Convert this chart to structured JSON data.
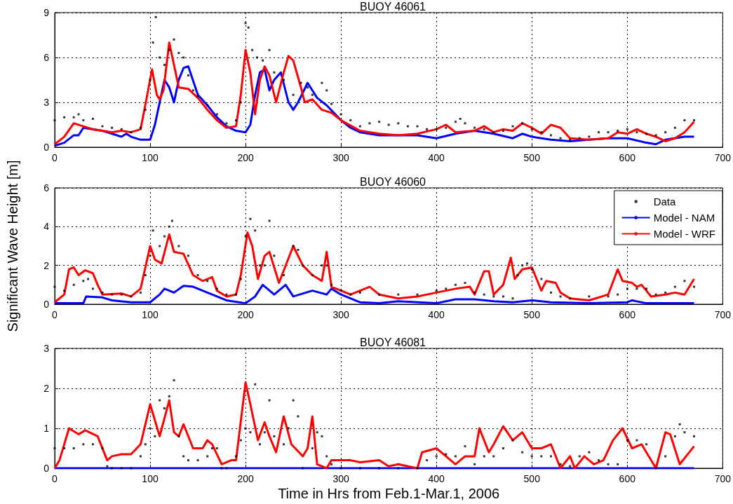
{
  "chart_data": [
    {
      "type": "line",
      "title": "BUOY 46061",
      "xlim": [
        0,
        700
      ],
      "xticks": [
        0,
        100,
        200,
        300,
        400,
        500,
        600,
        700
      ],
      "ylim": [
        0,
        9
      ],
      "yticks": [
        0,
        3,
        6,
        9
      ],
      "grid": true,
      "legend": false,
      "series": [
        {
          "type": "scatter",
          "color": "#000000",
          "x": [
            0,
            10,
            20,
            25,
            30,
            40,
            50,
            60,
            70,
            80,
            90,
            95,
            100,
            103,
            106,
            110,
            115,
            120,
            125,
            130,
            135,
            140,
            145,
            150,
            160,
            170,
            180,
            190,
            195,
            200,
            203,
            207,
            212,
            218,
            225,
            230,
            240,
            250,
            258,
            265,
            270,
            280,
            285,
            290,
            300,
            310,
            320,
            330,
            340,
            350,
            360,
            370,
            380,
            390,
            400,
            410,
            420,
            425,
            430,
            440,
            450,
            460,
            470,
            480,
            490,
            500,
            510,
            520,
            530,
            540,
            550,
            560,
            570,
            580,
            590,
            600,
            610,
            620,
            630,
            640,
            650,
            660,
            670
          ],
          "values": [
            1.8,
            2.0,
            2.0,
            2.2,
            1.8,
            1.9,
            1.4,
            1.3,
            1.2,
            1.0,
            1.3,
            2.5,
            4.5,
            7.0,
            8.7,
            6.0,
            5.5,
            6.5,
            7.2,
            6.3,
            6.0,
            4.8,
            3.8,
            3.4,
            2.8,
            2.2,
            1.6,
            1.8,
            3.0,
            8.3,
            8.0,
            6.5,
            6.0,
            5.8,
            6.5,
            5.0,
            4.5,
            3.5,
            4.3,
            4.0,
            3.5,
            4.3,
            3.8,
            2.9,
            2.2,
            1.8,
            1.4,
            1.6,
            1.7,
            1.5,
            1.6,
            1.4,
            1.4,
            1.2,
            1.2,
            1.3,
            1.7,
            1.9,
            1.6,
            1.3,
            1.2,
            1.0,
            1.1,
            1.4,
            1.6,
            1.2,
            1.0,
            0.8,
            0.6,
            0.5,
            0.6,
            0.7,
            1.0,
            1.0,
            1.1,
            1.2,
            1.0,
            0.9,
            0.8,
            1.0,
            1.3,
            1.8,
            1.8
          ]
        },
        {
          "color": "#0000ff",
          "x": [
            0,
            10,
            20,
            25,
            30,
            40,
            50,
            60,
            70,
            75,
            80,
            90,
            100,
            105,
            110,
            115,
            120,
            125,
            130,
            135,
            140,
            150,
            160,
            170,
            180,
            190,
            200,
            205,
            210,
            215,
            220,
            225,
            230,
            237,
            245,
            250,
            255,
            265,
            275,
            285,
            300,
            310,
            320,
            340,
            360,
            380,
            400,
            420,
            440,
            460,
            480,
            490,
            500,
            520,
            540,
            560,
            580,
            600,
            620,
            630,
            640,
            660,
            670
          ],
          "values": [
            0.1,
            0.3,
            0.8,
            0.8,
            1.3,
            1.2,
            1.1,
            0.9,
            0.7,
            0.9,
            0.7,
            0.5,
            0.5,
            1.5,
            3.0,
            4.5,
            4.0,
            3.0,
            4.5,
            5.3,
            5.4,
            3.5,
            2.8,
            2.0,
            1.4,
            1.1,
            1.0,
            1.5,
            3.5,
            5.0,
            5.2,
            3.8,
            4.5,
            5.0,
            3.0,
            2.5,
            3.0,
            4.3,
            3.3,
            2.8,
            1.8,
            1.3,
            1.0,
            0.8,
            0.8,
            0.8,
            0.6,
            0.9,
            1.1,
            0.9,
            0.6,
            0.9,
            0.7,
            0.5,
            0.4,
            0.5,
            0.6,
            0.6,
            0.3,
            0.2,
            0.5,
            0.7,
            0.7
          ]
        },
        {
          "color": "#ff0000",
          "x": [
            0,
            10,
            20,
            30,
            40,
            50,
            60,
            70,
            80,
            90,
            97,
            102,
            107,
            110,
            114,
            120,
            125,
            130,
            140,
            150,
            160,
            170,
            180,
            190,
            195,
            200,
            205,
            210,
            215,
            220,
            225,
            232,
            240,
            245,
            250,
            258,
            262,
            270,
            280,
            290,
            300,
            320,
            340,
            360,
            380,
            400,
            410,
            420,
            440,
            450,
            460,
            470,
            480,
            490,
            500,
            510,
            520,
            530,
            540,
            560,
            580,
            590,
            600,
            610,
            620,
            630,
            640,
            650,
            660,
            670
          ],
          "values": [
            0.2,
            0.7,
            1.6,
            1.4,
            1.2,
            1.1,
            1.0,
            1.1,
            1.0,
            1.2,
            3.5,
            5.2,
            3.5,
            3.2,
            3.8,
            7.0,
            5.5,
            4.0,
            3.9,
            3.3,
            2.5,
            1.8,
            1.3,
            1.4,
            3.5,
            6.5,
            5.0,
            2.2,
            4.5,
            5.4,
            4.8,
            3.0,
            5.0,
            6.1,
            5.8,
            4.0,
            3.0,
            3.2,
            2.5,
            2.3,
            1.8,
            1.1,
            0.9,
            0.8,
            0.9,
            1.2,
            1.5,
            1.0,
            1.1,
            1.4,
            1.0,
            1.2,
            1.1,
            1.6,
            1.3,
            0.9,
            1.5,
            1.3,
            0.6,
            0.5,
            0.6,
            1.0,
            0.9,
            1.2,
            0.9,
            0.7,
            0.4,
            0.6,
            1.0,
            1.7
          ]
        }
      ]
    },
    {
      "type": "line",
      "title": "BUOY 46060",
      "ylabel": "Significant Wave Height [m]",
      "xlim": [
        0,
        700
      ],
      "xticks": [
        0,
        100,
        200,
        300,
        400,
        500,
        600,
        700
      ],
      "ylim": [
        0,
        6
      ],
      "yticks": [
        0,
        2,
        4,
        6
      ],
      "grid": true,
      "legend": "top right",
      "series": [
        {
          "type": "scatter",
          "name": "Data",
          "color": "#000000",
          "x": [
            0,
            10,
            20,
            30,
            35,
            40,
            50,
            60,
            70,
            80,
            90,
            95,
            100,
            103,
            110,
            115,
            120,
            123,
            130,
            140,
            150,
            160,
            170,
            180,
            190,
            195,
            200,
            205,
            210,
            215,
            220,
            225,
            230,
            240,
            250,
            255,
            260,
            270,
            280,
            285,
            290,
            300,
            310,
            320,
            340,
            360,
            380,
            400,
            410,
            420,
            430,
            440,
            450,
            460,
            470,
            480,
            485,
            490,
            495,
            500,
            510,
            520,
            530,
            540,
            560,
            580,
            590,
            600,
            610,
            620,
            630,
            640,
            650,
            660,
            670
          ],
          "values": [
            0.9,
            0.7,
            1.0,
            1.2,
            1.3,
            0.8,
            0.6,
            0.5,
            0.5,
            0.4,
            0.6,
            1.5,
            2.5,
            3.8,
            3.0,
            3.5,
            4.0,
            4.3,
            3.0,
            2.5,
            1.5,
            1.2,
            0.8,
            0.5,
            0.5,
            1.3,
            3.5,
            4.4,
            3.8,
            2.0,
            2.0,
            4.3,
            2.5,
            1.5,
            3.0,
            2.8,
            2.0,
            1.5,
            2.0,
            2.0,
            1.0,
            0.7,
            0.5,
            0.6,
            0.5,
            0.5,
            0.5,
            0.7,
            0.8,
            1.0,
            1.1,
            0.6,
            0.5,
            0.4,
            0.4,
            0.3,
            1.5,
            2.0,
            2.1,
            1.8,
            1.3,
            0.6,
            0.4,
            0.3,
            0.4,
            0.4,
            0.5,
            0.8,
            0.8,
            0.8,
            0.5,
            0.6,
            0.9,
            1.2,
            0.9
          ]
        },
        {
          "name": "Model - NAM",
          "color": "#0000ff",
          "x": [
            0,
            30,
            33,
            50,
            60,
            80,
            100,
            110,
            115,
            125,
            135,
            145,
            160,
            180,
            200,
            210,
            218,
            230,
            242,
            250,
            270,
            285,
            290,
            300,
            320,
            340,
            360,
            400,
            420,
            440,
            460,
            480,
            500,
            520,
            560,
            600,
            605,
            620,
            670
          ],
          "values": [
            0.05,
            0.05,
            0.4,
            0.35,
            0.2,
            0.1,
            0.1,
            0.5,
            0.8,
            0.6,
            0.95,
            0.9,
            0.6,
            0.2,
            0.05,
            0.4,
            1.0,
            0.5,
            1.0,
            0.4,
            0.7,
            0.5,
            0.8,
            0.5,
            0.1,
            0.05,
            0.15,
            0.05,
            0.25,
            0.25,
            0.15,
            0.1,
            0.2,
            0.1,
            0.05,
            0.1,
            0.2,
            0.05,
            0.05
          ]
        },
        {
          "name": "Model - WRF",
          "color": "#ff0000",
          "x": [
            0,
            10,
            15,
            20,
            25,
            32,
            40,
            45,
            50,
            70,
            80,
            90,
            100,
            105,
            112,
            120,
            125,
            135,
            145,
            155,
            165,
            170,
            180,
            190,
            195,
            202,
            207,
            213,
            220,
            225,
            235,
            250,
            260,
            270,
            280,
            285,
            290,
            300,
            310,
            330,
            340,
            360,
            380,
            400,
            420,
            435,
            440,
            450,
            455,
            460,
            470,
            478,
            482,
            490,
            500,
            510,
            515,
            525,
            530,
            540,
            560,
            580,
            590,
            595,
            605,
            610,
            615,
            625,
            640,
            650,
            660,
            670
          ],
          "values": [
            0.1,
            0.5,
            1.8,
            1.9,
            1.5,
            1.75,
            1.6,
            1.0,
            0.5,
            0.55,
            0.4,
            0.8,
            3.0,
            2.3,
            2.1,
            3.6,
            2.7,
            2.6,
            1.5,
            1.2,
            1.4,
            0.7,
            0.4,
            0.5,
            1.5,
            3.7,
            3.0,
            1.3,
            2.5,
            2.7,
            1.1,
            3.0,
            2.0,
            1.5,
            1.2,
            2.7,
            0.9,
            0.7,
            0.5,
            0.9,
            0.5,
            0.3,
            0.4,
            0.6,
            0.8,
            0.9,
            0.5,
            1.7,
            1.7,
            0.5,
            1.0,
            2.4,
            1.3,
            1.8,
            1.9,
            0.7,
            1.2,
            1.1,
            0.6,
            0.3,
            0.2,
            0.5,
            1.8,
            1.2,
            1.1,
            0.9,
            1.0,
            0.4,
            0.5,
            0.6,
            0.5,
            1.3
          ]
        }
      ]
    },
    {
      "type": "line",
      "title": "BUOY 46081",
      "xlabel": "Time in Hrs from Feb.1-Mar.1, 2006",
      "xlim": [
        0,
        700
      ],
      "xticks": [
        0,
        100,
        200,
        300,
        400,
        500,
        600,
        700
      ],
      "ylim": [
        0,
        3
      ],
      "yticks": [
        0,
        1,
        2,
        3
      ],
      "grid": true,
      "legend": false,
      "series": [
        {
          "type": "scatter",
          "color": "#000000",
          "x": [
            0,
            10,
            20,
            30,
            40,
            50,
            55,
            60,
            70,
            80,
            90,
            95,
            100,
            105,
            110,
            115,
            120,
            125,
            130,
            135,
            140,
            150,
            160,
            165,
            170,
            175,
            180,
            190,
            195,
            200,
            205,
            210,
            215,
            220,
            225,
            230,
            240,
            245,
            250,
            255,
            260,
            270,
            275,
            280,
            285,
            290,
            300,
            320,
            340,
            360,
            380,
            390,
            400,
            410,
            420,
            430,
            440,
            450,
            460,
            470,
            480,
            490,
            500,
            510,
            520,
            530,
            540,
            550,
            560,
            570,
            580,
            590,
            600,
            610,
            620,
            630,
            640,
            650,
            655,
            660,
            670
          ],
          "values": [
            0.5,
            0.5,
            0.5,
            0.6,
            0.6,
            0.5,
            0.05,
            0.0,
            0.0,
            0.0,
            0.3,
            0.6,
            1.0,
            0.8,
            1.7,
            1.5,
            1.8,
            2.2,
            0.8,
            0.3,
            0.2,
            0.2,
            0.3,
            0.5,
            0.5,
            0.0,
            0.0,
            0.3,
            0.7,
            1.0,
            0.9,
            2.1,
            0.6,
            0.9,
            1.7,
            0.8,
            0.6,
            1.0,
            1.7,
            1.3,
            0.0,
            0.5,
            0.9,
            0.8,
            0.3,
            0.1,
            0.0,
            0.0,
            0.0,
            0.0,
            0.0,
            0.2,
            0.3,
            0.35,
            0.3,
            0.55,
            0.1,
            0.3,
            0.3,
            0.5,
            0.7,
            0.4,
            0.3,
            0.3,
            0.3,
            0.1,
            0.05,
            0.3,
            0.4,
            0.2,
            0.1,
            0.1,
            0.7,
            0.7,
            0.6,
            0.0,
            0.3,
            0.8,
            1.1,
            0.9,
            0.8
          ]
        },
        {
          "color": "#0000ff",
          "x": [
            0,
            670
          ],
          "values": [
            0,
            0
          ]
        },
        {
          "color": "#ff0000",
          "x": [
            0,
            5,
            15,
            25,
            32,
            45,
            55,
            60,
            70,
            80,
            90,
            100,
            110,
            120,
            125,
            130,
            135,
            145,
            155,
            160,
            165,
            175,
            185,
            190,
            200,
            205,
            213,
            220,
            225,
            232,
            240,
            248,
            260,
            265,
            270,
            275,
            285,
            290,
            310,
            320,
            340,
            350,
            360,
            380,
            385,
            400,
            410,
            420,
            430,
            440,
            445,
            455,
            460,
            470,
            480,
            490,
            500,
            510,
            520,
            530,
            540,
            545,
            555,
            565,
            575,
            585,
            595,
            605,
            615,
            630,
            640,
            645,
            655,
            670
          ],
          "values": [
            0.0,
            0.2,
            1.0,
            0.85,
            0.95,
            0.8,
            0.2,
            0.3,
            0.35,
            0.35,
            0.6,
            1.6,
            0.8,
            1.7,
            0.9,
            0.8,
            1.1,
            0.5,
            0.5,
            0.7,
            0.6,
            0.1,
            0.2,
            0.2,
            2.15,
            1.6,
            0.7,
            1.15,
            0.8,
            0.4,
            1.3,
            0.6,
            0.3,
            0.5,
            1.3,
            0.1,
            0.0,
            0.2,
            0.2,
            0.15,
            0.2,
            0.05,
            0.1,
            0.0,
            0.4,
            0.5,
            0.3,
            0.1,
            0.3,
            0.3,
            1.0,
            0.4,
            0.6,
            1.05,
            0.7,
            0.9,
            0.5,
            0.5,
            0.6,
            0.0,
            0.3,
            0.0,
            0.3,
            0.1,
            0.2,
            0.7,
            1.0,
            0.5,
            0.6,
            0.0,
            0.9,
            0.85,
            0.1,
            0.55
          ]
        }
      ]
    }
  ]
}
